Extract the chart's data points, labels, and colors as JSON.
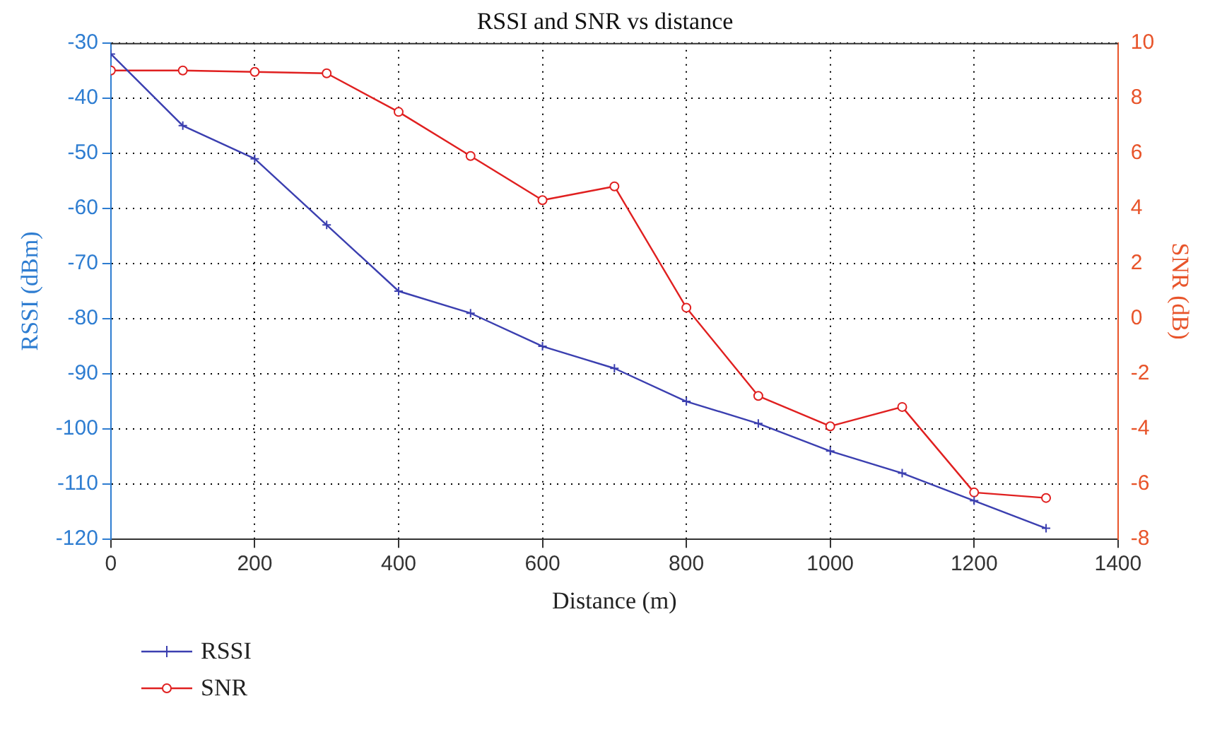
{
  "chart_data": {
    "type": "line",
    "title": "RSSI and SNR vs distance",
    "xlabel": "Distance (m)",
    "ylabel": "RSSI (dBm)",
    "y2label": "SNR (dB)",
    "x": [
      0,
      100,
      200,
      300,
      400,
      500,
      600,
      700,
      800,
      900,
      1000,
      1100,
      1200,
      1300
    ],
    "series": [
      {
        "name": "RSSI",
        "color": "#3b3fb0",
        "marker": "cross",
        "axis": "y",
        "values": [
          -32,
          -45,
          -51,
          -63,
          -75,
          -79,
          -85,
          -89,
          -95,
          -99,
          -104,
          -108,
          -113,
          -118
        ]
      },
      {
        "name": "SNR",
        "color": "#e02020",
        "marker": "circle",
        "axis": "y2",
        "values": [
          9.0,
          9.0,
          8.95,
          8.9,
          7.5,
          5.9,
          4.3,
          4.8,
          0.4,
          -2.8,
          -3.9,
          -3.2,
          -6.3,
          -6.5
        ]
      }
    ],
    "xlim": [
      0,
      1400
    ],
    "xticks": [
      0,
      200,
      400,
      600,
      800,
      1000,
      1200,
      1400
    ],
    "ylim": [
      -120,
      -30
    ],
    "yticks": [
      -120,
      -110,
      -100,
      -90,
      -80,
      -70,
      -60,
      -50,
      -40,
      -30
    ],
    "y2lim": [
      -8,
      10
    ],
    "y2ticks": [
      -8,
      -6,
      -4,
      -2,
      0,
      2,
      4,
      6,
      8,
      10
    ],
    "grid": true,
    "legend": "bottom left",
    "line_style": "solid"
  }
}
